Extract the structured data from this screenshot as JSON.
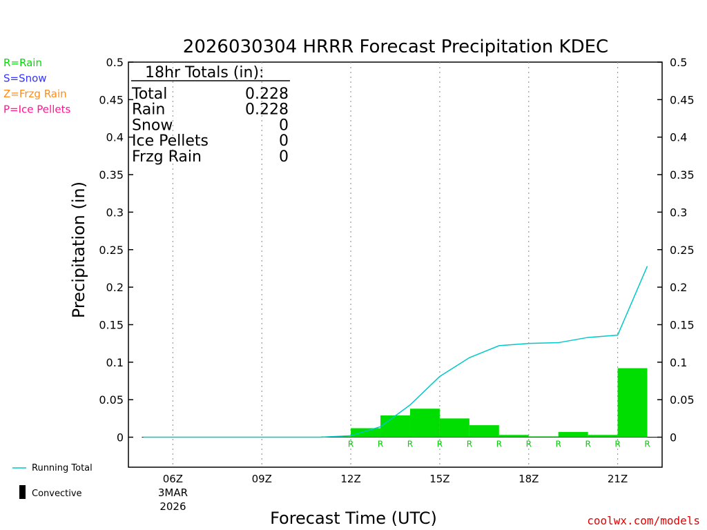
{
  "chart_data": {
    "type": "bar",
    "title": "2026030304 HRRR Forecast Precipitation KDEC",
    "xlabel": "Forecast Time (UTC)",
    "ylabel": "Precipitation (in)",
    "ylim": [
      -0.04,
      0.5
    ],
    "y_ticks": [
      "0.5",
      "0.45",
      "0.4",
      "0.35",
      "0.3",
      "0.25",
      "0.2",
      "0.15",
      "0.1",
      "0.05",
      "0"
    ],
    "x_hour_range": [
      4.5,
      22.5
    ],
    "x_ticks": [
      {
        "hour": 6,
        "label": "06Z",
        "label2": "3MAR",
        "label3": "2026"
      },
      {
        "hour": 9,
        "label": "09Z"
      },
      {
        "hour": 12,
        "label": "12Z"
      },
      {
        "hour": 15,
        "label": "15Z"
      },
      {
        "hour": 18,
        "label": "18Z"
      },
      {
        "hour": 21,
        "label": "21Z"
      }
    ],
    "hourly_precip": {
      "hours": [
        5,
        6,
        7,
        8,
        9,
        10,
        11,
        12,
        13,
        14,
        15,
        16,
        17,
        18,
        19,
        20,
        21,
        22
      ],
      "values": [
        0,
        0,
        0,
        0,
        0,
        0,
        0,
        0.001,
        0.012,
        0.029,
        0.038,
        0.025,
        0.016,
        0.003,
        0.001,
        0.007,
        0.003,
        0.092
      ],
      "color": "#00dd00"
    },
    "running_total": {
      "name": "Running Total",
      "hours": [
        5,
        6,
        7,
        8,
        9,
        10,
        11,
        12,
        13,
        14,
        15,
        16,
        17,
        18,
        19,
        20,
        21,
        22
      ],
      "values": [
        0,
        0,
        0,
        0,
        0,
        0,
        0,
        0.002,
        0.014,
        0.043,
        0.081,
        0.106,
        0.122,
        0.125,
        0.126,
        0.133,
        0.136,
        0.228
      ],
      "color": "#00c8c8"
    },
    "precip_type_markers": {
      "hours": [
        12,
        13,
        14,
        15,
        16,
        17,
        18,
        19,
        20,
        21,
        22
      ],
      "letter": "R",
      "color": "#00cc00"
    },
    "legend_types": [
      {
        "text": "R=Rain",
        "color": "#00dd00"
      },
      {
        "text": "S=Snow",
        "color": "#3333ff"
      },
      {
        "text": "Z=Frzg Rain",
        "color": "#ff8c1a"
      },
      {
        "text": "P=Ice Pellets",
        "color": "#ff1493"
      }
    ],
    "totals_box": {
      "heading": "18hr Totals (in):",
      "rows": [
        {
          "label": "Total",
          "value": "0.228"
        },
        {
          "label": "Rain",
          "value": "0.228"
        },
        {
          "label": "Snow",
          "value": "0"
        },
        {
          "label": "Ice Pellets",
          "value": "0"
        },
        {
          "label": "Frzg Rain",
          "value": "0"
        }
      ]
    },
    "bottom_legend": {
      "running_total_label": "Running Total",
      "convective_label": "Convective"
    },
    "grid": "vertical dotted at x ticks"
  },
  "credit": "coolwx.com/models"
}
